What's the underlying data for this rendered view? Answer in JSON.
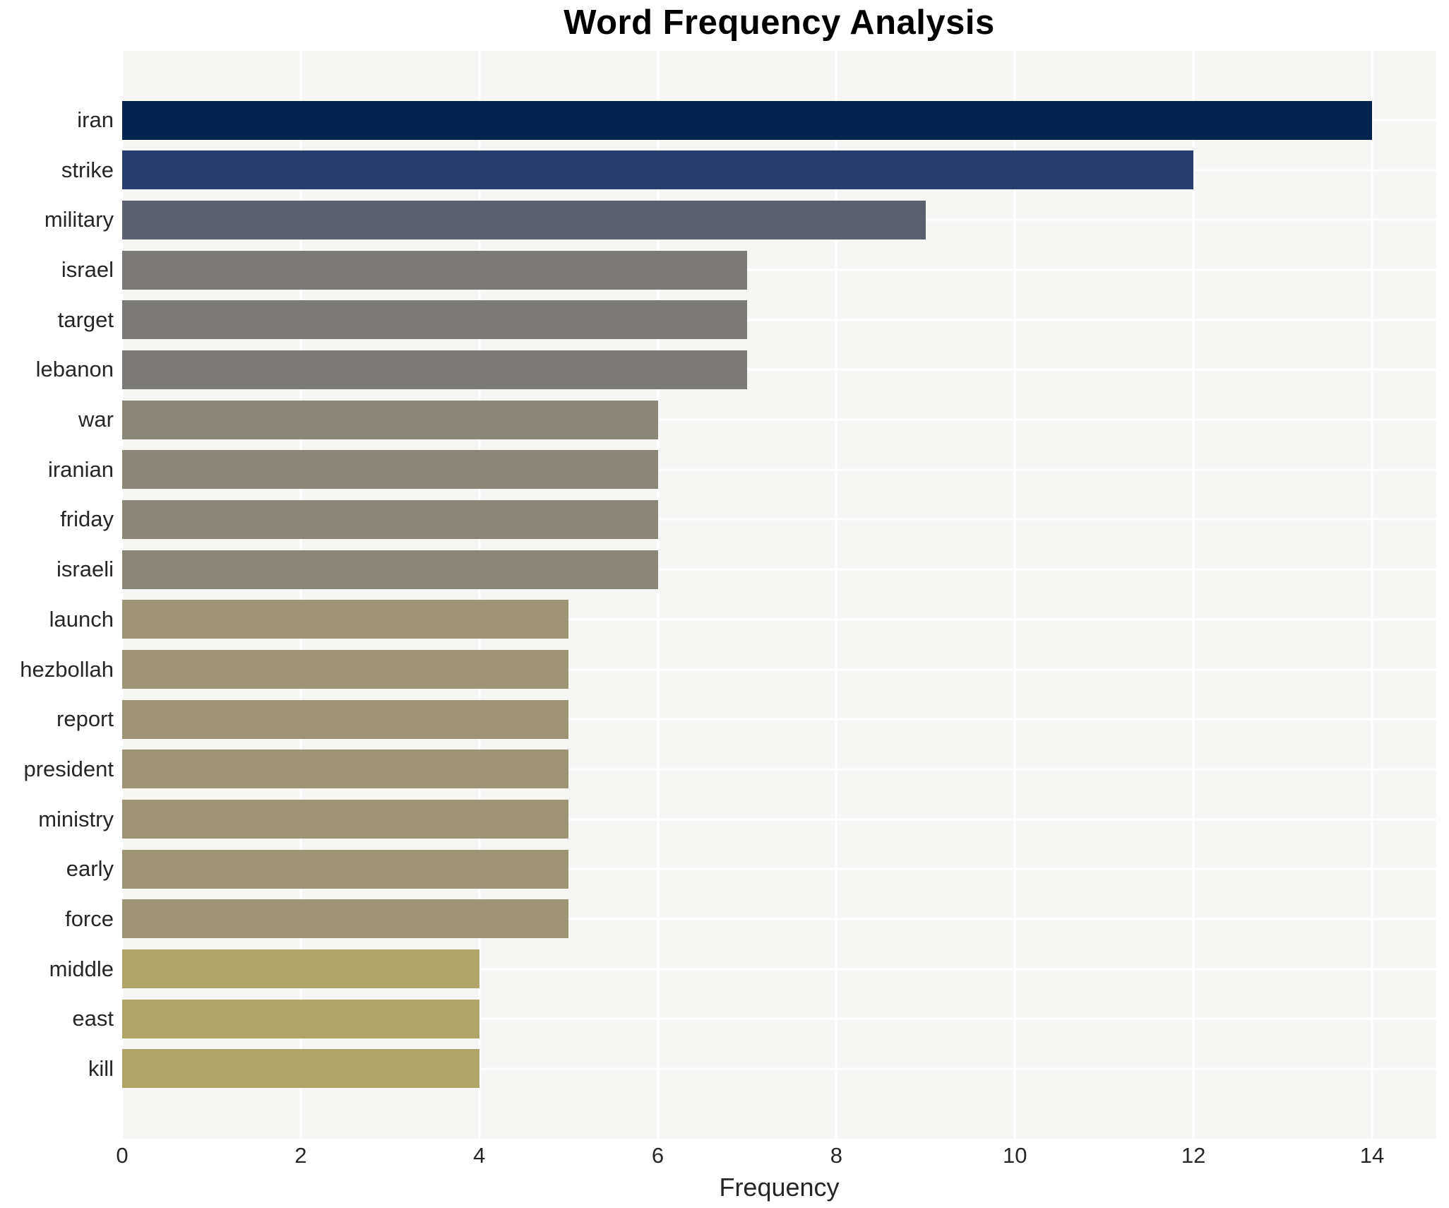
{
  "chart_data": {
    "type": "bar",
    "orientation": "horizontal",
    "title": "Word Frequency Analysis",
    "xlabel": "Frequency",
    "ylabel": "",
    "categories": [
      "iran",
      "strike",
      "military",
      "israel",
      "target",
      "lebanon",
      "war",
      "iranian",
      "friday",
      "israeli",
      "launch",
      "hezbollah",
      "report",
      "president",
      "ministry",
      "early",
      "force",
      "middle",
      "east",
      "kill"
    ],
    "values": [
      14,
      12,
      9,
      7,
      7,
      7,
      6,
      6,
      6,
      6,
      5,
      5,
      5,
      5,
      5,
      5,
      5,
      4,
      4,
      4
    ],
    "bar_colors": [
      "#02234e",
      "#2a3e6d",
      "#5c6170",
      "#7b7a76",
      "#7b7a76",
      "#7b7a76",
      "#8b8778",
      "#8b8778",
      "#8b8778",
      "#8b8778",
      "#9c9474",
      "#9c9474",
      "#9c9474",
      "#9c9474",
      "#9c9474",
      "#9c9474",
      "#9c9474",
      "#b0a569",
      "#b0a569",
      "#b0a569"
    ],
    "xticks": [
      "0",
      "2",
      "4",
      "6",
      "8",
      "10",
      "12",
      "14"
    ],
    "xtick_values": [
      0,
      2,
      4,
      6,
      8,
      10,
      12,
      14
    ],
    "xlim": [
      0,
      14.72
    ],
    "grid": true,
    "legend": false,
    "plot_bg_color": "#f6f6f4",
    "grid_color": "#ffffff",
    "text_color": "#262626",
    "figure_bg_color": "#ffffff"
  }
}
